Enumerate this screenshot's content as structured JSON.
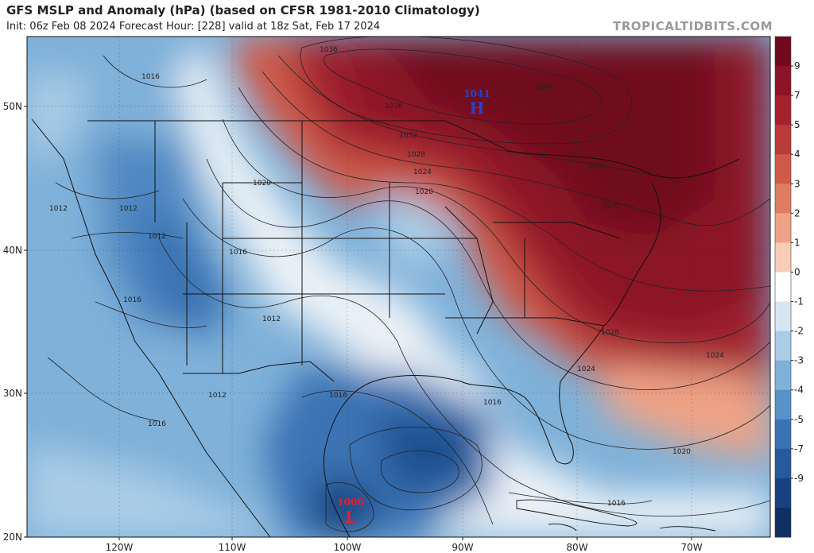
{
  "header": {
    "title": "GFS MSLP and Anomaly (hPa) (based on CFSR 1981-2010 Climatology)",
    "subtitle": "Init: 06z Feb 08 2024   Forecast Hour: [228]   valid at 18z Sat, Feb 17 2024",
    "brand": "TROPICALTIDBITS.COM"
  },
  "axes": {
    "lat_labels": [
      "50N",
      "40N",
      "30N",
      "20N"
    ],
    "lon_labels": [
      "120W",
      "110W",
      "100W",
      "90W",
      "80W",
      "70W"
    ]
  },
  "colorbar": {
    "labels": [
      "9",
      "7",
      "5",
      "4",
      "3",
      "2",
      "1",
      "0",
      "-1",
      "-2",
      "-3",
      "-4",
      "-5",
      "-7",
      "-9"
    ],
    "colors": [
      "#6f0a1e",
      "#8c1426",
      "#a3222e",
      "#bb3a3a",
      "#cf5a4a",
      "#e07c61",
      "#eea386",
      "#f7cdb8",
      "#ffffff",
      "#d5e6f2",
      "#aacde7",
      "#7fb1d9",
      "#5893c8",
      "#3a73b4",
      "#265a9d",
      "#17427f",
      "#0f2f62"
    ]
  },
  "systems": {
    "high": {
      "value": "1041",
      "letter": "H",
      "color": "#2444cc"
    },
    "low": {
      "value": "1006",
      "letter": "L",
      "color": "#e02030"
    }
  },
  "contour_labels": [
    "1036",
    "1040",
    "1036",
    "1032",
    "1028",
    "1024",
    "1020",
    "1036",
    "1032",
    "1020",
    "1016",
    "1012",
    "1012",
    "1012",
    "1016",
    "1016",
    "1012",
    "1016",
    "1012",
    "1016",
    "1016",
    "1028",
    "1024",
    "1024",
    "1020",
    "1016"
  ]
}
